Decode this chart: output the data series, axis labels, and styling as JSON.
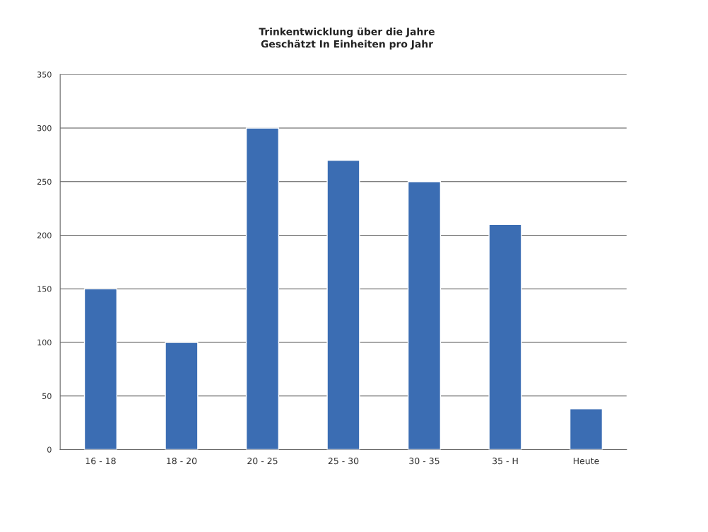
{
  "chart_data": {
    "type": "bar",
    "title": "Trinkentwicklung über die Jahre",
    "subtitle": "Geschätzt In Einheiten pro Jahr",
    "categories": [
      "16 - 18",
      "18 - 20",
      "20 - 25",
      "25 - 30",
      "30 - 35",
      "35 - H",
      "Heute"
    ],
    "values": [
      150,
      100,
      300,
      270,
      250,
      210,
      38
    ],
    "color": "#3b6db3",
    "ylim": [
      0,
      350
    ],
    "yticks": [
      0,
      50,
      100,
      150,
      200,
      250,
      300,
      350
    ],
    "grid": "y",
    "legend": false
  }
}
